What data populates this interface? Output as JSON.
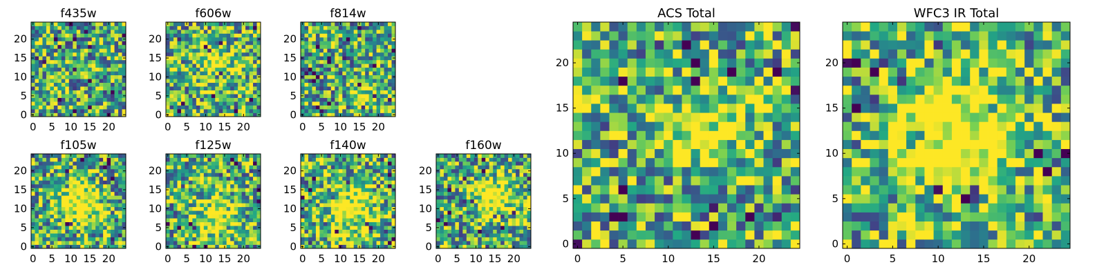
{
  "colormap": "viridis",
  "colors": {
    "stops": [
      "#440154",
      "#414487",
      "#2a788e",
      "#22a884",
      "#7ad151",
      "#fde725"
    ],
    "axis": "#000000",
    "background": "#ffffff"
  },
  "chart_data": [
    {
      "type": "heatmap",
      "title": "f435w",
      "xlim": [
        0,
        24
      ],
      "ylim": [
        0,
        24
      ],
      "xticks": [
        "0",
        "5",
        "10",
        "15",
        "20"
      ],
      "yticks": [
        "0",
        "5",
        "10",
        "15",
        "20"
      ],
      "grid": false,
      "blob": null
    },
    {
      "type": "heatmap",
      "title": "f606w",
      "xlim": [
        0,
        24
      ],
      "ylim": [
        0,
        24
      ],
      "xticks": [
        "0",
        "5",
        "10",
        "15",
        "20"
      ],
      "yticks": [
        "0",
        "5",
        "10",
        "15",
        "20"
      ],
      "grid": false,
      "blob": {
        "cx": 13,
        "cy": 13,
        "r": 4,
        "a": 0.35
      }
    },
    {
      "type": "heatmap",
      "title": "f814w",
      "xlim": [
        0,
        24
      ],
      "ylim": [
        0,
        24
      ],
      "xticks": [
        "0",
        "5",
        "10",
        "15",
        "20"
      ],
      "yticks": [
        "0",
        "5",
        "10",
        "15",
        "20"
      ],
      "grid": false,
      "blob": {
        "cx": 17,
        "cy": 6,
        "r": 3,
        "a": 0.3
      }
    },
    {
      "type": "heatmap",
      "title": "f105w",
      "xlim": [
        0,
        24
      ],
      "ylim": [
        0,
        24
      ],
      "xticks": [
        "0",
        "5",
        "10",
        "15",
        "20"
      ],
      "yticks": [
        "0",
        "5",
        "10",
        "15",
        "20"
      ],
      "grid": false,
      "blob": {
        "cx": 12,
        "cy": 11,
        "r": 4,
        "a": 0.55
      }
    },
    {
      "type": "heatmap",
      "title": "f125w",
      "xlim": [
        0,
        24
      ],
      "ylim": [
        0,
        24
      ],
      "xticks": [
        "0",
        "5",
        "10",
        "15",
        "20"
      ],
      "yticks": [
        "0",
        "5",
        "10",
        "15",
        "20"
      ],
      "grid": false,
      "blob": {
        "cx": 13,
        "cy": 7,
        "r": 4,
        "a": 0.45
      }
    },
    {
      "type": "heatmap",
      "title": "f140w",
      "xlim": [
        0,
        24
      ],
      "ylim": [
        0,
        24
      ],
      "xticks": [
        "0",
        "5",
        "10",
        "15",
        "20"
      ],
      "yticks": [
        "0",
        "5",
        "10",
        "15",
        "20"
      ],
      "grid": false,
      "blob": {
        "cx": 13,
        "cy": 10,
        "r": 5,
        "a": 0.45
      }
    },
    {
      "type": "heatmap",
      "title": "f160w",
      "xlim": [
        0,
        24
      ],
      "ylim": [
        0,
        24
      ],
      "xticks": [
        "0",
        "5",
        "10",
        "15",
        "20"
      ],
      "yticks": [
        "0",
        "5",
        "10",
        "15",
        "20"
      ],
      "grid": false,
      "blob": {
        "cx": 15,
        "cy": 13,
        "r": 4,
        "a": 0.5
      }
    },
    {
      "type": "heatmap",
      "title": "ACS Total",
      "xlim": [
        0,
        24
      ],
      "ylim": [
        0,
        24
      ],
      "xticks": [
        "0",
        "5",
        "10",
        "15",
        "20"
      ],
      "yticks": [
        "0",
        "5",
        "10",
        "15",
        "20"
      ],
      "grid": false,
      "blob": {
        "cx": 14,
        "cy": 13,
        "r": 3,
        "a": 0.45
      }
    },
    {
      "type": "heatmap",
      "title": "WFC3 IR Total",
      "xlim": [
        0,
        24
      ],
      "ylim": [
        0,
        24
      ],
      "xticks": [
        "0",
        "5",
        "10",
        "15",
        "20"
      ],
      "yticks": [
        "0",
        "5",
        "10",
        "15",
        "20"
      ],
      "grid": false,
      "blob": {
        "cx": 12,
        "cy": 12,
        "r": 5,
        "a": 0.65
      }
    }
  ]
}
